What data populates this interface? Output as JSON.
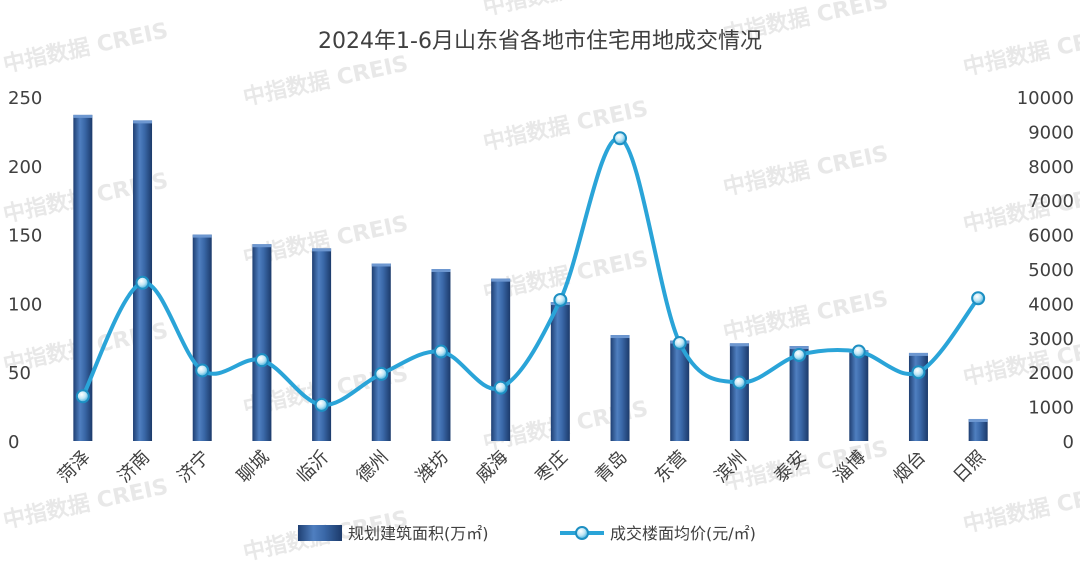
{
  "chart_data": {
    "type": "bar",
    "title": "2024年1-6月山东省各地市住宅用地成交情况",
    "categories": [
      "菏泽",
      "济南",
      "济宁",
      "聊城",
      "临沂",
      "德州",
      "潍坊",
      "威海",
      "枣庄",
      "青岛",
      "东营",
      "滨州",
      "泰安",
      "淄博",
      "烟台",
      "日照"
    ],
    "series": [
      {
        "name": "规划建筑面积(万㎡)",
        "type": "bar",
        "axis": "left",
        "color": "#2e5c9a",
        "values": [
          237,
          233,
          150,
          143,
          140,
          129,
          125,
          118,
          101,
          77,
          73,
          71,
          69,
          66,
          64,
          16
        ]
      },
      {
        "name": "成交楼面均价(元/㎡)",
        "type": "line",
        "smooth": true,
        "axis": "right",
        "color": "#2aa4d8",
        "values": [
          1300,
          4600,
          2050,
          2350,
          1050,
          1950,
          2600,
          1550,
          4100,
          8800,
          2850,
          1700,
          2500,
          2600,
          2000,
          4150
        ]
      }
    ],
    "y_left": {
      "min": 0,
      "max": 250,
      "ticks": [
        0,
        50,
        100,
        150,
        200,
        250
      ]
    },
    "y_right": {
      "min": 0,
      "max": 10000,
      "ticks": [
        0,
        1000,
        2000,
        3000,
        4000,
        5000,
        6000,
        7000,
        8000,
        9000,
        10000
      ]
    },
    "grid": false,
    "legend_position": "bottom",
    "watermark": "中指数据 CREIS"
  }
}
